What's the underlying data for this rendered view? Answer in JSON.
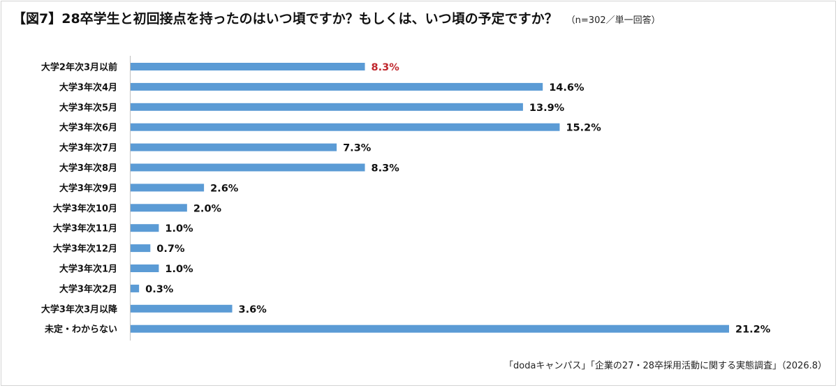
{
  "title": "【図7】28卒学生と初回接点を持ったのはいつ頃ですか？もしくは、いつ頃の予定ですか？",
  "note": "（n=302／単一回答）",
  "source": "「dodaキャンパス」「企業の27・28卒採用活動に関する実態調査」（2026.8）",
  "colors": {
    "bar": "#5b9bd5",
    "highlight_label": "#c0272d",
    "label": "#111111"
  },
  "chart_data": {
    "type": "bar",
    "orientation": "horizontal",
    "categories": [
      "大学2年次3月以前",
      "大学3年次4月",
      "大学3年次5月",
      "大学3年次6月",
      "大学3年次7月",
      "大学3年次8月",
      "大学3年次9月",
      "大学3年次10月",
      "大学3年次11月",
      "大学3年次12月",
      "大学3年次1月",
      "大学3年次2月",
      "大学3年次3月以降",
      "未定・わからない"
    ],
    "values": [
      8.3,
      14.6,
      13.9,
      15.2,
      7.3,
      8.3,
      2.6,
      2.0,
      1.0,
      0.7,
      1.0,
      0.3,
      3.6,
      21.2
    ],
    "data_labels": [
      "8.3%",
      "14.6%",
      "13.9%",
      "15.2%",
      "7.3%",
      "8.3%",
      "2.6%",
      "2.0%",
      "1.0%",
      "0.7%",
      "1.0%",
      "0.3%",
      "3.6%",
      "21.2%"
    ],
    "highlight_index": 0,
    "xlim": [
      0,
      21.2
    ],
    "grid": false,
    "legend": "none"
  }
}
